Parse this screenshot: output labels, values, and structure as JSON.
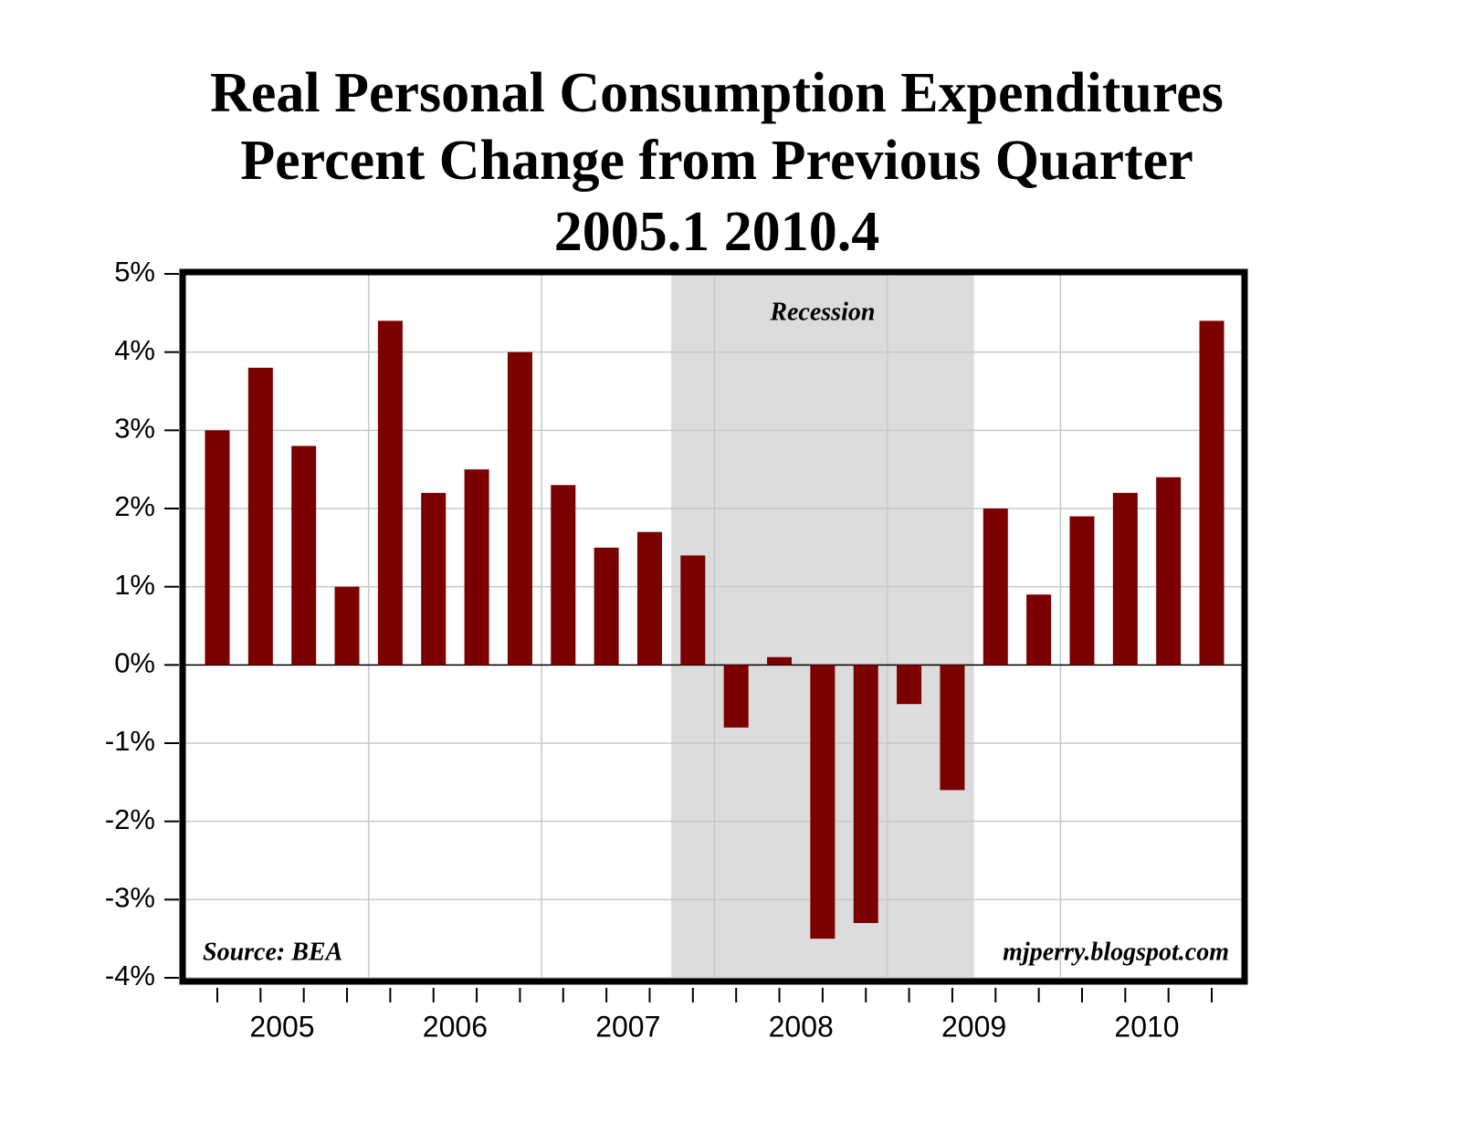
{
  "chart_data": {
    "type": "bar",
    "title": [
      "Real Personal Consumption Expenditures",
      "Percent Change from Previous Quarter",
      "2005.1 2010.4"
    ],
    "categories": [
      null,
      null,
      null,
      null,
      null,
      null,
      null,
      null,
      null,
      null,
      null,
      null,
      null,
      null,
      null,
      null,
      null,
      null,
      null,
      null,
      null,
      null,
      null,
      null
    ],
    "x_groups": [
      "2005",
      "2006",
      "2007",
      "2008",
      "2009",
      "2010"
    ],
    "values": [
      3.0,
      3.8,
      2.8,
      1.0,
      4.4,
      2.2,
      2.5,
      4.0,
      2.3,
      1.5,
      1.7,
      1.4,
      -0.8,
      0.1,
      -3.5,
      -3.3,
      -0.5,
      -1.6,
      2.0,
      0.9,
      1.9,
      2.2,
      2.4,
      4.4
    ],
    "color": "#7b0000",
    "ylim": [
      -4,
      5
    ],
    "yticks": [
      {
        "value": 5,
        "label": "5%"
      },
      {
        "value": 4,
        "label": "4%"
      },
      {
        "value": 3,
        "label": "3%"
      },
      {
        "value": 2,
        "label": "2%"
      },
      {
        "value": 1,
        "label": "1%"
      },
      {
        "value": 0,
        "label": "0%"
      },
      {
        "value": -1,
        "label": "-1%"
      },
      {
        "value": -2,
        "label": "-2%"
      },
      {
        "value": -3,
        "label": "-3%"
      },
      {
        "value": -4,
        "label": "-4%"
      }
    ],
    "grid": true,
    "shaded_region": {
      "label": "Recession",
      "from": 11,
      "to": 17
    },
    "annotations": [
      "Source: BEA",
      "mjperry.blogspot.com"
    ]
  }
}
